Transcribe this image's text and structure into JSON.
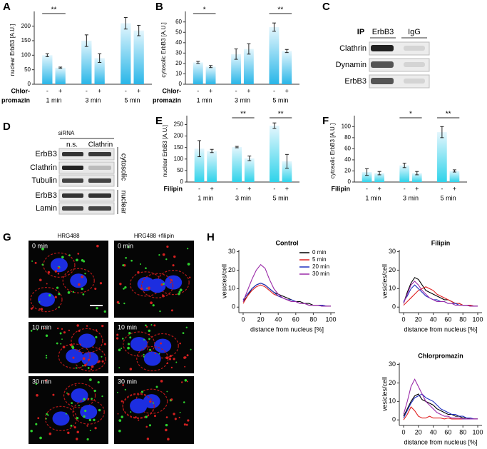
{
  "panel_letters": [
    "A",
    "B",
    "C",
    "D",
    "E",
    "F",
    "G",
    "H"
  ],
  "chart_data": [
    {
      "type": "bar",
      "ylabel": "nuclear ErbB3 [A.U.]",
      "categories": [
        "1 min",
        "3 min",
        "5 min"
      ],
      "treatment_label": [
        "Chlor-",
        "promazin"
      ],
      "color": "#29b6e8",
      "series": [
        {
          "name": "-",
          "values": [
            100,
            150,
            210
          ],
          "errors": [
            5,
            20,
            20
          ]
        },
        {
          "name": "+",
          "values": [
            57,
            90,
            185
          ],
          "errors": [
            2,
            15,
            18
          ]
        }
      ],
      "ylim": [
        0,
        236
      ],
      "yticks": [
        0,
        50,
        100,
        150,
        200
      ],
      "significance": [
        {
          "group": "1 min",
          "label": "**"
        }
      ]
    },
    {
      "type": "bar",
      "ylabel": "cytosolic ErbB3 [A.U.]",
      "categories": [
        "1 min",
        "3 min",
        "5 min"
      ],
      "treatment_label": [
        "Chlor-",
        "promazin"
      ],
      "color": "#29b6e8",
      "series": [
        {
          "name": "-",
          "values": [
            21,
            29,
            55
          ],
          "errors": [
            1,
            5,
            4
          ]
        },
        {
          "name": "+",
          "values": [
            17,
            34,
            32
          ],
          "errors": [
            1,
            5,
            1.5
          ]
        }
      ],
      "ylim": [
        0,
        66
      ],
      "yticks": [
        0,
        10,
        20,
        30,
        40,
        50,
        60
      ],
      "significance": [
        {
          "group": "1 min",
          "label": "*"
        },
        {
          "group": "5 min",
          "label": "**"
        }
      ]
    },
    {
      "type": "bar",
      "ylabel": "nuclear ErbB3 [A.U.]",
      "categories": [
        "1 min",
        "3 min",
        "5 min"
      ],
      "treatment_label": [
        "Filipin"
      ],
      "color": "#2fd3ea",
      "series": [
        {
          "name": "-",
          "values": [
            145,
            152,
            245
          ],
          "errors": [
            35,
            3,
            12
          ]
        },
        {
          "name": "+",
          "values": [
            135,
            103,
            90
          ],
          "errors": [
            7,
            10,
            30
          ]
        }
      ],
      "ylim": [
        0,
        270
      ],
      "yticks": [
        0,
        50,
        100,
        150,
        200,
        250
      ],
      "significance": [
        {
          "group": "3 min",
          "label": "**"
        },
        {
          "group": "5 min",
          "label": "**"
        }
      ]
    },
    {
      "type": "bar",
      "ylabel": "cytosolic ErbB3 [A.U.]",
      "categories": [
        "1 min",
        "3 min",
        "5 min"
      ],
      "treatment_label": [
        "Filipin"
      ],
      "color": "#2fd3ea",
      "series": [
        {
          "name": "-",
          "values": [
            18,
            30,
            90
          ],
          "errors": [
            6,
            4,
            10
          ]
        },
        {
          "name": "+",
          "values": [
            16,
            16,
            20
          ],
          "errors": [
            3,
            3,
            2
          ]
        }
      ],
      "ylim": [
        0,
        112
      ],
      "yticks": [
        0,
        20,
        40,
        60,
        80,
        100
      ],
      "significance": [
        {
          "group": "3 min",
          "label": "*"
        },
        {
          "group": "5 min",
          "label": "**"
        }
      ]
    },
    {
      "type": "line",
      "title": "Control",
      "xlabel": "distance from nucleus [%]",
      "ylabel": "vesicles/cell",
      "legend": true,
      "x": [
        0,
        5,
        10,
        15,
        20,
        25,
        30,
        35,
        40,
        45,
        50,
        55,
        60,
        65,
        70,
        75,
        80,
        85,
        90,
        95,
        100
      ],
      "series": [
        {
          "name": "0 min",
          "color": "#000000",
          "values": [
            3,
            6,
            10,
            12,
            13,
            12,
            10,
            8,
            7,
            6,
            5,
            4,
            3,
            3,
            2,
            2,
            1,
            1,
            1,
            0.5,
            0.5
          ]
        },
        {
          "name": "5 min",
          "color": "#e02020",
          "values": [
            2,
            6,
            9,
            11,
            12,
            11,
            9,
            7,
            6,
            5,
            4,
            3,
            3,
            2,
            2,
            1,
            1,
            1,
            0.5,
            0.5,
            0.5
          ]
        },
        {
          "name": "20 min",
          "color": "#2030c0",
          "values": [
            4,
            7,
            10,
            12,
            13,
            12,
            10,
            8,
            6,
            5,
            4,
            4,
            3,
            2,
            2,
            1,
            1,
            1,
            1,
            0.5,
            0.5
          ]
        },
        {
          "name": "30 min",
          "color": "#9a2aa8",
          "values": [
            3,
            9,
            15,
            20,
            23,
            21,
            15,
            10,
            7,
            5,
            4,
            3,
            3,
            2,
            2,
            1,
            1,
            1,
            0.5,
            0.5,
            0.5
          ]
        }
      ],
      "xlim": [
        0,
        100
      ],
      "xticks": [
        0,
        20,
        40,
        60,
        80,
        100
      ],
      "ylim": [
        -3,
        31
      ],
      "yticks": [
        0,
        10,
        20,
        30
      ]
    },
    {
      "type": "line",
      "title": "Filipin",
      "xlabel": "distance from nucleus [%]",
      "ylabel": "vesicles/cell",
      "legend": false,
      "x": [
        0,
        5,
        10,
        15,
        20,
        25,
        30,
        35,
        40,
        45,
        50,
        55,
        60,
        65,
        70,
        75,
        80,
        85,
        90,
        95,
        100
      ],
      "series": [
        {
          "color": "#000000",
          "values": [
            2,
            8,
            13,
            16,
            15,
            12,
            9,
            8,
            7,
            6,
            5,
            4,
            4,
            3,
            2,
            2,
            1,
            1,
            1,
            0.5,
            0.5
          ]
        },
        {
          "color": "#e02020",
          "values": [
            1,
            3,
            5,
            7,
            9,
            10,
            11,
            10,
            9,
            7,
            6,
            5,
            4,
            3,
            2,
            2,
            1,
            1,
            1,
            0.5,
            0.5
          ]
        },
        {
          "color": "#2030c0",
          "values": [
            3,
            6,
            10,
            12,
            10,
            8,
            6,
            5,
            4,
            4,
            3,
            3,
            2,
            2,
            2,
            1,
            1,
            1,
            0.5,
            0.5,
            0.5
          ]
        },
        {
          "color": "#9a2aa8",
          "values": [
            2,
            7,
            12,
            14,
            12,
            9,
            7,
            5,
            4,
            3,
            3,
            3,
            2,
            2,
            1,
            1,
            1,
            1,
            0.5,
            0.5,
            0.5
          ]
        }
      ],
      "xlim": [
        0,
        100
      ],
      "xticks": [
        0,
        20,
        40,
        60,
        80,
        100
      ],
      "ylim": [
        -3,
        31
      ],
      "yticks": [
        0,
        10,
        20,
        30
      ]
    },
    {
      "type": "line",
      "title": "Chlorpromazin",
      "xlabel": "distance from nucleus [%]",
      "ylabel": "vesicles/cell",
      "legend": false,
      "x": [
        0,
        5,
        10,
        15,
        20,
        25,
        30,
        35,
        40,
        45,
        50,
        55,
        60,
        65,
        70,
        75,
        80,
        85,
        90,
        95,
        100
      ],
      "series": [
        {
          "color": "#000000",
          "values": [
            2,
            6,
            10,
            13,
            14,
            11,
            10,
            9,
            8,
            6,
            5,
            4,
            3,
            3,
            2,
            2,
            1,
            1,
            0.5,
            0.5,
            0.5
          ]
        },
        {
          "color": "#e02020",
          "values": [
            0,
            3,
            7,
            5,
            2,
            1,
            1,
            2,
            1,
            1,
            1,
            0.5,
            1,
            0.5,
            0.5,
            0.5,
            0.5,
            0.5,
            0.5,
            0.5,
            0.5
          ]
        },
        {
          "color": "#2030c0",
          "values": [
            1,
            5,
            9,
            12,
            13,
            14,
            12,
            11,
            10,
            8,
            6,
            5,
            4,
            3,
            3,
            2,
            2,
            1,
            1,
            0.5,
            0.5
          ]
        },
        {
          "color": "#9a2aa8",
          "values": [
            3,
            10,
            18,
            22,
            18,
            14,
            10,
            8,
            6,
            4,
            3,
            2,
            2,
            1,
            1,
            1,
            0.5,
            0.5,
            0.5,
            0.5,
            0.5
          ]
        }
      ],
      "xlim": [
        0,
        100
      ],
      "xticks": [
        0,
        20,
        40,
        60,
        80,
        100
      ],
      "ylim": [
        -3,
        31
      ],
      "yticks": [
        0,
        10,
        20,
        30
      ]
    }
  ],
  "blot_c": {
    "ip_label": "IP",
    "lanes": [
      "ErbB3",
      "IgG"
    ],
    "rows": [
      "Clathrin",
      "Dynamin",
      "ErbB3"
    ]
  },
  "blot_d": {
    "header": "siRNA",
    "lanes": [
      "n.s.",
      "Clathrin"
    ],
    "rows": [
      "ErbB3",
      "Clathrin",
      "Tubulin",
      "ErbB3",
      "Lamin"
    ],
    "fractions": [
      "cytosolic",
      "nuclear"
    ]
  },
  "micrographs": {
    "columns": [
      "HRG488",
      "HRG488 +filipin"
    ],
    "rows": [
      "0 min",
      "10 min",
      "30 min"
    ]
  }
}
